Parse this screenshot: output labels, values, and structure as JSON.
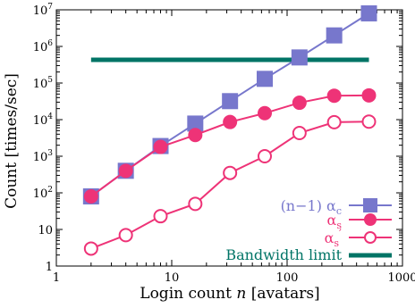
{
  "chart_data": {
    "type": "line",
    "xlabel_prefix": "Login count",
    "xlabel_var": "n",
    "xlabel_suffix": "[avatars]",
    "ylabel": "Count [times/sec]",
    "x_scale": "log",
    "y_scale": "log",
    "xlim": [
      1,
      1000
    ],
    "ylim": [
      1,
      10000000
    ],
    "grid": false,
    "legend_position": "bottom-right",
    "x_ticks": [
      {
        "value": 1,
        "label": "1"
      },
      {
        "value": 10,
        "label": "10"
      },
      {
        "value": 100,
        "label": "100"
      },
      {
        "value": 1000,
        "label": "1000"
      }
    ],
    "y_ticks": [
      {
        "value": 1,
        "base": "1",
        "exp": ""
      },
      {
        "value": 10,
        "base": "10",
        "exp": ""
      },
      {
        "value": 100,
        "base": "10",
        "exp": "2"
      },
      {
        "value": 1000,
        "base": "10",
        "exp": "3"
      },
      {
        "value": 10000,
        "base": "10",
        "exp": "4"
      },
      {
        "value": 100000,
        "base": "10",
        "exp": "5"
      },
      {
        "value": 1000000,
        "base": "10",
        "exp": "6"
      },
      {
        "value": 10000000,
        "base": "10",
        "exp": "7"
      }
    ],
    "series": [
      {
        "key": "alpha_c",
        "legend_text": "(n−1) α",
        "legend_sub": "c",
        "color": "#7777cc",
        "marker": "square",
        "x": [
          2,
          4,
          8,
          16,
          32,
          64,
          128,
          256,
          512
        ],
        "y": [
          80,
          400,
          1900,
          7800,
          32000,
          130000,
          500000,
          2000000,
          8000000
        ]
      },
      {
        "key": "alpha_s",
        "legend_text": "α",
        "legend_sub": "s",
        "color": "#ee3377",
        "marker": "filled-circle",
        "x": [
          2,
          4,
          8,
          16,
          32,
          64,
          128,
          256,
          512
        ],
        "y": [
          80,
          400,
          1800,
          3800,
          8600,
          15000,
          29000,
          45000,
          46000
        ]
      },
      {
        "key": "alpha_s_prime",
        "legend_text": "α",
        "legend_sub": "s",
        "legend_prime": "′",
        "color": "#ee3377",
        "marker": "open-circle",
        "x": [
          2,
          4,
          8,
          16,
          32,
          64,
          128,
          256,
          512
        ],
        "y": [
          3,
          7,
          23,
          50,
          350,
          1000,
          4300,
          8500,
          8800
        ]
      }
    ],
    "reference_lines": [
      {
        "name": "Bandwidth limit",
        "color": "#007466",
        "x": [
          2,
          512
        ],
        "y": 430000
      }
    ]
  }
}
